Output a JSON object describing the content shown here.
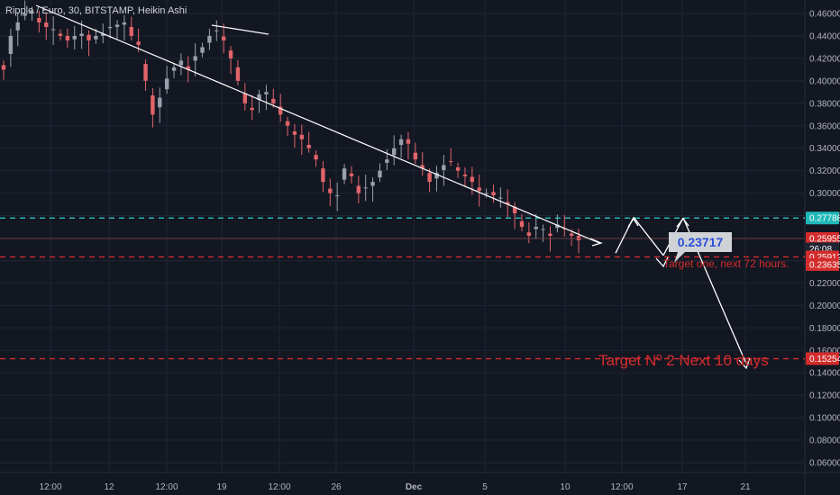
{
  "header": {
    "title": "Ripple / Euro, 30, BITSTAMP, Heikin Ashi"
  },
  "colors": {
    "background": "#131722",
    "grid": "#1f2433",
    "up_candle": "#9aa0ab",
    "down_candle": "#e0646a",
    "resistance_line": "#2dd4d4",
    "target_line": "#d42c2c",
    "price_tag_current": "#e03c3c",
    "annotation_box": "#cfd2d6",
    "annotation_text": "#2b4fd8",
    "arrows": "#ffffff"
  },
  "chart_data": {
    "type": "candlestick",
    "title": "Ripple / Euro, 30, BITSTAMP, Heikin Ashi",
    "ylim": [
      0.048,
      0.468
    ],
    "y_ticks": [
      "0.46000",
      "0.44000",
      "0.42000",
      "0.40000",
      "0.38000",
      "0.36000",
      "0.34000",
      "0.32000",
      "0.30000",
      "0.28000",
      "0.26000",
      "0.24000",
      "0.22000",
      "0.20000",
      "0.18000",
      "0.16000",
      "0.14000",
      "0.12000",
      "0.10000",
      "0.08000",
      "0.06000"
    ],
    "x_ticks": [
      "12:00",
      "12",
      "12:00",
      "19",
      "12:00",
      "26",
      "Dec",
      "5",
      "10",
      "12:00",
      "17",
      "21"
    ],
    "price_tags": [
      {
        "label": "0.27786",
        "value": 0.27786,
        "kind": "level"
      },
      {
        "label": "0.25955",
        "value": 0.25955,
        "kind": "current"
      },
      {
        "label": "26:08",
        "value": 0.2505,
        "kind": "countdown"
      },
      {
        "label": "0.25912",
        "value": 0.2432,
        "kind": "level"
      },
      {
        "label": "0.23635",
        "value": 0.23635,
        "kind": "level"
      },
      {
        "label": "0.15254",
        "value": 0.15254,
        "kind": "level"
      }
    ],
    "horizontal_lines": [
      {
        "value": 0.27786,
        "style": "dashed",
        "color": "cyan"
      },
      {
        "value": 0.2432,
        "style": "dashed",
        "color": "red"
      },
      {
        "value": 0.15254,
        "style": "dashed",
        "color": "red"
      }
    ],
    "annotations": [
      {
        "text": "0.23717",
        "kind": "callout"
      },
      {
        "text": "Target one, next 72 hours.",
        "kind": "text"
      },
      {
        "text": "Target Nº 2 Next 10 days",
        "kind": "text"
      }
    ],
    "trendline": {
      "from": [
        "12:00",
        0.468
      ],
      "to": [
        "10",
        0.255
      ]
    },
    "projection_path": [
      0.2465,
      0.2785,
      0.2445,
      0.278,
      0.148
    ],
    "candles_close": [
      0.41,
      0.44,
      0.452,
      0.46,
      0.462,
      0.452,
      0.448,
      0.446,
      0.44,
      0.436,
      0.44,
      0.442,
      0.436,
      0.44,
      0.442,
      0.448,
      0.45,
      0.452,
      0.44,
      0.432,
      0.4,
      0.37,
      0.385,
      0.402,
      0.412,
      0.418,
      0.41,
      0.422,
      0.43,
      0.44,
      0.445,
      0.436,
      0.42,
      0.4,
      0.38,
      0.374,
      0.388,
      0.39,
      0.38,
      0.37,
      0.36,
      0.352,
      0.348,
      0.34,
      0.33,
      0.31,
      0.3,
      0.298,
      0.322,
      0.315,
      0.3,
      0.305,
      0.31,
      0.32,
      0.33,
      0.34,
      0.348,
      0.344,
      0.33,
      0.322,
      0.31,
      0.318,
      0.325,
      0.328,
      0.32,
      0.315,
      0.31,
      0.302,
      0.3,
      0.298,
      0.296,
      0.29,
      0.282,
      0.27,
      0.262,
      0.27,
      0.268,
      0.262,
      0.272,
      0.268,
      0.262,
      0.258
    ]
  }
}
